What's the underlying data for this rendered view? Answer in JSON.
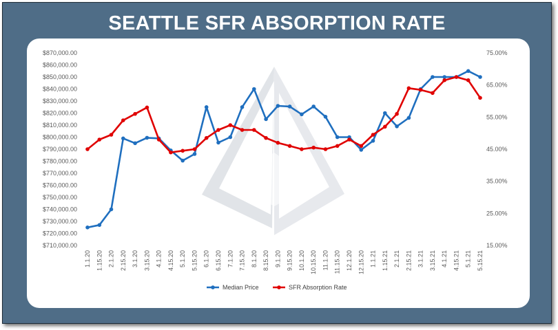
{
  "header": {
    "title": "SEATTLE SFR ABSORPTION RATE"
  },
  "colors": {
    "frame": "#4f6d87",
    "median_price": "#1f6fbf",
    "absorption": "#e00000",
    "watermark": "#c9ced6"
  },
  "chart_data": {
    "type": "line",
    "title": "SEATTLE SFR ABSORPTION RATE",
    "categories": [
      "1.1.20",
      "1.15.20",
      "2.1.20",
      "2.15.20",
      "3.1.20",
      "3.15.20",
      "4.1.20",
      "4.15.20",
      "5.1.20",
      "5.15.20",
      "6.1.20",
      "6.15.20",
      "7.1.20",
      "7.15.20",
      "8.1.20",
      "8.15.20",
      "9.1.20",
      "9.15.20",
      "10.1.20",
      "10.15.20",
      "11.1.20",
      "11.15.20",
      "12.1.20",
      "12.15.20",
      "1.1.21",
      "1.15.21",
      "2.1.21",
      "2.15.21",
      "3.1.21",
      "3.15.21",
      "4.1.21",
      "4.15.21",
      "5.1.21",
      "5.15.21"
    ],
    "left_axis": {
      "ylim": [
        710000,
        870000
      ],
      "ticks": [
        "$710,000.00",
        "$720,000.00",
        "$730,000.00",
        "$740,000.00",
        "$750,000.00",
        "$760,000.00",
        "$770,000.00",
        "$780,000.00",
        "$790,000.00",
        "$800,000.00",
        "$810,000.00",
        "$820,000.00",
        "$830,000.00",
        "$840,000.00",
        "$850,000.00",
        "$860,000.00",
        "$870,000.00"
      ]
    },
    "right_axis": {
      "ylim": [
        0.15,
        0.75
      ],
      "ticks": [
        "15.00%",
        "25.00%",
        "35.00%",
        "45.00%",
        "55.00%",
        "65.00%",
        "75.00%"
      ]
    },
    "series": [
      {
        "name": "Median Price",
        "axis": "left",
        "values": [
          725000,
          727000,
          740000,
          799000,
          795000,
          799500,
          799000,
          789000,
          780500,
          786000,
          825000,
          795500,
          800000,
          825000,
          840000,
          815000,
          826000,
          825500,
          819000,
          825500,
          817000,
          800000,
          800000,
          789500,
          797000,
          820000,
          809000,
          816000,
          840000,
          850000,
          850000,
          850000,
          855000,
          850000
        ]
      },
      {
        "name": "SFR Absorption Rate",
        "axis": "right",
        "values": [
          0.45,
          0.48,
          0.495,
          0.54,
          0.56,
          0.58,
          0.48,
          0.44,
          0.445,
          0.45,
          0.485,
          0.51,
          0.525,
          0.51,
          0.51,
          0.485,
          0.47,
          0.46,
          0.45,
          0.455,
          0.45,
          0.46,
          0.48,
          0.46,
          0.495,
          0.52,
          0.56,
          0.64,
          0.635,
          0.625,
          0.665,
          0.675,
          0.665,
          0.61
        ]
      }
    ],
    "legend": {
      "position": "bottom",
      "items": [
        "Median Price",
        "SFR Absorption Rate"
      ]
    },
    "grid": false
  }
}
